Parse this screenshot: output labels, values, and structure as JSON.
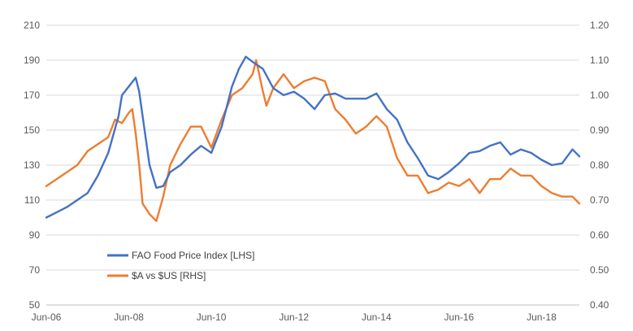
{
  "chart_data": {
    "type": "line",
    "title": "",
    "grid": true,
    "legend_position": "lower-left",
    "x_axis": {
      "tick_labels": [
        "Jun-06",
        "Jun-08",
        "Jun-10",
        "Jun-12",
        "Jun-14",
        "Jun-16",
        "Jun-18"
      ],
      "start": "2006-06",
      "end": "2019-05"
    },
    "y_left": {
      "range": [
        50,
        210
      ],
      "tick_labels": [
        "50",
        "70",
        "90",
        "110",
        "130",
        "150",
        "170",
        "190",
        "210"
      ]
    },
    "y_right": {
      "range": [
        0.4,
        1.2
      ],
      "tick_labels": [
        "0.40",
        "0.50",
        "0.60",
        "0.70",
        "0.80",
        "0.90",
        "1.00",
        "1.10",
        "1.20"
      ]
    },
    "series": [
      {
        "name": "FAO Food Price Index [LHS]",
        "axis": "left",
        "color": "#4472C4",
        "points": [
          [
            "2006-06",
            100
          ],
          [
            "2006-09",
            103
          ],
          [
            "2006-12",
            106
          ],
          [
            "2007-03",
            110
          ],
          [
            "2007-06",
            114
          ],
          [
            "2007-09",
            124
          ],
          [
            "2007-12",
            137
          ],
          [
            "2008-03",
            158
          ],
          [
            "2008-04",
            170
          ],
          [
            "2008-06",
            175
          ],
          [
            "2008-08",
            180
          ],
          [
            "2008-09",
            172
          ],
          [
            "2008-10",
            158
          ],
          [
            "2008-12",
            130
          ],
          [
            "2009-02",
            117
          ],
          [
            "2009-04",
            118
          ],
          [
            "2009-06",
            126
          ],
          [
            "2009-09",
            130
          ],
          [
            "2009-12",
            136
          ],
          [
            "2010-03",
            141
          ],
          [
            "2010-06",
            137
          ],
          [
            "2010-09",
            152
          ],
          [
            "2010-12",
            175
          ],
          [
            "2011-02",
            185
          ],
          [
            "2011-04",
            192
          ],
          [
            "2011-06",
            189
          ],
          [
            "2011-09",
            185
          ],
          [
            "2011-12",
            174
          ],
          [
            "2012-03",
            170
          ],
          [
            "2012-06",
            172
          ],
          [
            "2012-09",
            168
          ],
          [
            "2012-12",
            162
          ],
          [
            "2013-03",
            170
          ],
          [
            "2013-06",
            171
          ],
          [
            "2013-09",
            168
          ],
          [
            "2013-12",
            168
          ],
          [
            "2014-03",
            168
          ],
          [
            "2014-06",
            171
          ],
          [
            "2014-09",
            162
          ],
          [
            "2014-12",
            156
          ],
          [
            "2015-03",
            143
          ],
          [
            "2015-06",
            134
          ],
          [
            "2015-09",
            124
          ],
          [
            "2015-12",
            122
          ],
          [
            "2016-03",
            126
          ],
          [
            "2016-06",
            131
          ],
          [
            "2016-09",
            137
          ],
          [
            "2016-12",
            138
          ],
          [
            "2017-03",
            141
          ],
          [
            "2017-06",
            143
          ],
          [
            "2017-09",
            136
          ],
          [
            "2017-12",
            139
          ],
          [
            "2018-03",
            137
          ],
          [
            "2018-06",
            133
          ],
          [
            "2018-09",
            130
          ],
          [
            "2018-12",
            131
          ],
          [
            "2019-03",
            139
          ],
          [
            "2019-05",
            135
          ]
        ]
      },
      {
        "name": "$A vs $US [RHS]",
        "axis": "right",
        "color": "#ED7D31",
        "points": [
          [
            "2006-06",
            0.74
          ],
          [
            "2006-09",
            0.76
          ],
          [
            "2006-12",
            0.78
          ],
          [
            "2007-03",
            0.8
          ],
          [
            "2007-06",
            0.84
          ],
          [
            "2007-09",
            0.86
          ],
          [
            "2007-12",
            0.88
          ],
          [
            "2008-02",
            0.93
          ],
          [
            "2008-04",
            0.92
          ],
          [
            "2008-06",
            0.95
          ],
          [
            "2008-07",
            0.96
          ],
          [
            "2008-08",
            0.89
          ],
          [
            "2008-09",
            0.8
          ],
          [
            "2008-10",
            0.69
          ],
          [
            "2008-12",
            0.66
          ],
          [
            "2009-02",
            0.64
          ],
          [
            "2009-04",
            0.71
          ],
          [
            "2009-06",
            0.8
          ],
          [
            "2009-09",
            0.86
          ],
          [
            "2009-12",
            0.91
          ],
          [
            "2010-03",
            0.91
          ],
          [
            "2010-06",
            0.85
          ],
          [
            "2010-09",
            0.93
          ],
          [
            "2010-12",
            1.0
          ],
          [
            "2011-03",
            1.02
          ],
          [
            "2011-06",
            1.06
          ],
          [
            "2011-07",
            1.1
          ],
          [
            "2011-09",
            1.01
          ],
          [
            "2011-10",
            0.97
          ],
          [
            "2011-12",
            1.02
          ],
          [
            "2012-03",
            1.06
          ],
          [
            "2012-06",
            1.02
          ],
          [
            "2012-09",
            1.04
          ],
          [
            "2012-12",
            1.05
          ],
          [
            "2013-03",
            1.04
          ],
          [
            "2013-06",
            0.96
          ],
          [
            "2013-09",
            0.93
          ],
          [
            "2013-12",
            0.89
          ],
          [
            "2014-03",
            0.91
          ],
          [
            "2014-06",
            0.94
          ],
          [
            "2014-09",
            0.91
          ],
          [
            "2014-12",
            0.82
          ],
          [
            "2015-03",
            0.77
          ],
          [
            "2015-06",
            0.77
          ],
          [
            "2015-09",
            0.72
          ],
          [
            "2015-12",
            0.73
          ],
          [
            "2016-03",
            0.75
          ],
          [
            "2016-06",
            0.74
          ],
          [
            "2016-09",
            0.76
          ],
          [
            "2016-12",
            0.72
          ],
          [
            "2017-03",
            0.76
          ],
          [
            "2017-06",
            0.76
          ],
          [
            "2017-09",
            0.79
          ],
          [
            "2017-12",
            0.77
          ],
          [
            "2018-03",
            0.77
          ],
          [
            "2018-06",
            0.74
          ],
          [
            "2018-09",
            0.72
          ],
          [
            "2018-12",
            0.71
          ],
          [
            "2019-03",
            0.71
          ],
          [
            "2019-05",
            0.69
          ]
        ]
      }
    ]
  }
}
